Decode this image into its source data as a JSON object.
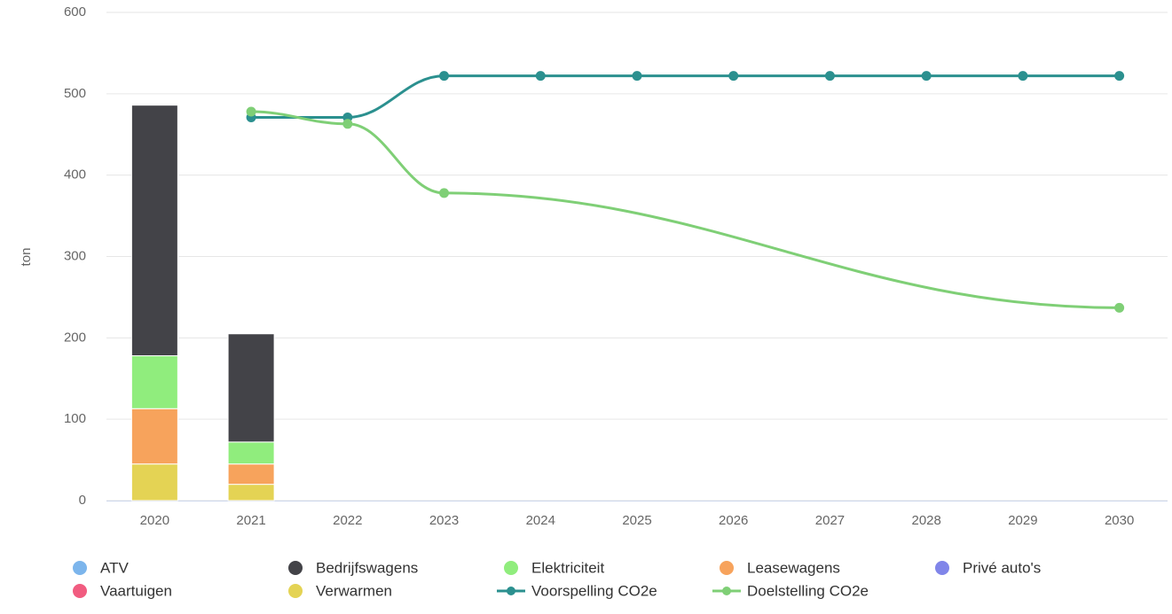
{
  "chart_data": {
    "type": "bar",
    "stacked": true,
    "connect_nulls": true,
    "y_label": "ton",
    "categories": [
      "2020",
      "2021",
      "2022",
      "2023",
      "2024",
      "2025",
      "2026",
      "2027",
      "2028",
      "2029",
      "2030"
    ],
    "ylim": [
      0,
      600
    ],
    "yticks": [
      0,
      100,
      200,
      300,
      400,
      500,
      600
    ],
    "grid": true,
    "legend": "bottom",
    "series": [
      {
        "name": "ATV",
        "type": "bar",
        "color": "#7cb5ec",
        "values": [
          0,
          0,
          null,
          null,
          null,
          null,
          null,
          null,
          null,
          null,
          null
        ]
      },
      {
        "name": "Bedrijfswagens",
        "type": "bar",
        "color": "#434348",
        "values": [
          308,
          133,
          null,
          null,
          null,
          null,
          null,
          null,
          null,
          null,
          null
        ]
      },
      {
        "name": "Elektriciteit",
        "type": "bar",
        "color": "#90ed7d",
        "values": [
          65,
          27,
          null,
          null,
          null,
          null,
          null,
          null,
          null,
          null,
          null
        ]
      },
      {
        "name": "Leasewagens",
        "type": "bar",
        "color": "#f7a35c",
        "values": [
          68,
          25,
          null,
          null,
          null,
          null,
          null,
          null,
          null,
          null,
          null
        ]
      },
      {
        "name": "Privé auto's",
        "type": "bar",
        "color": "#8085e9",
        "values": [
          0,
          0,
          null,
          null,
          null,
          null,
          null,
          null,
          null,
          null,
          null
        ]
      },
      {
        "name": "Vaartuigen",
        "type": "bar",
        "color": "#f15c80",
        "values": [
          0,
          0,
          null,
          null,
          null,
          null,
          null,
          null,
          null,
          null,
          null
        ]
      },
      {
        "name": "Verwarmen",
        "type": "bar",
        "color": "#e4d354",
        "values": [
          45,
          20,
          null,
          null,
          null,
          null,
          null,
          null,
          null,
          null,
          null
        ]
      },
      {
        "name": "Voorspelling CO2e",
        "type": "line",
        "color": "#2b908f",
        "values": [
          null,
          471,
          471,
          522,
          522,
          522,
          522,
          522,
          522,
          522,
          522
        ]
      },
      {
        "name": "Doelstelling CO2e",
        "type": "line",
        "color": "#7fcf76",
        "values": [
          null,
          478,
          463,
          378,
          null,
          null,
          null,
          null,
          null,
          null,
          237
        ]
      }
    ]
  }
}
